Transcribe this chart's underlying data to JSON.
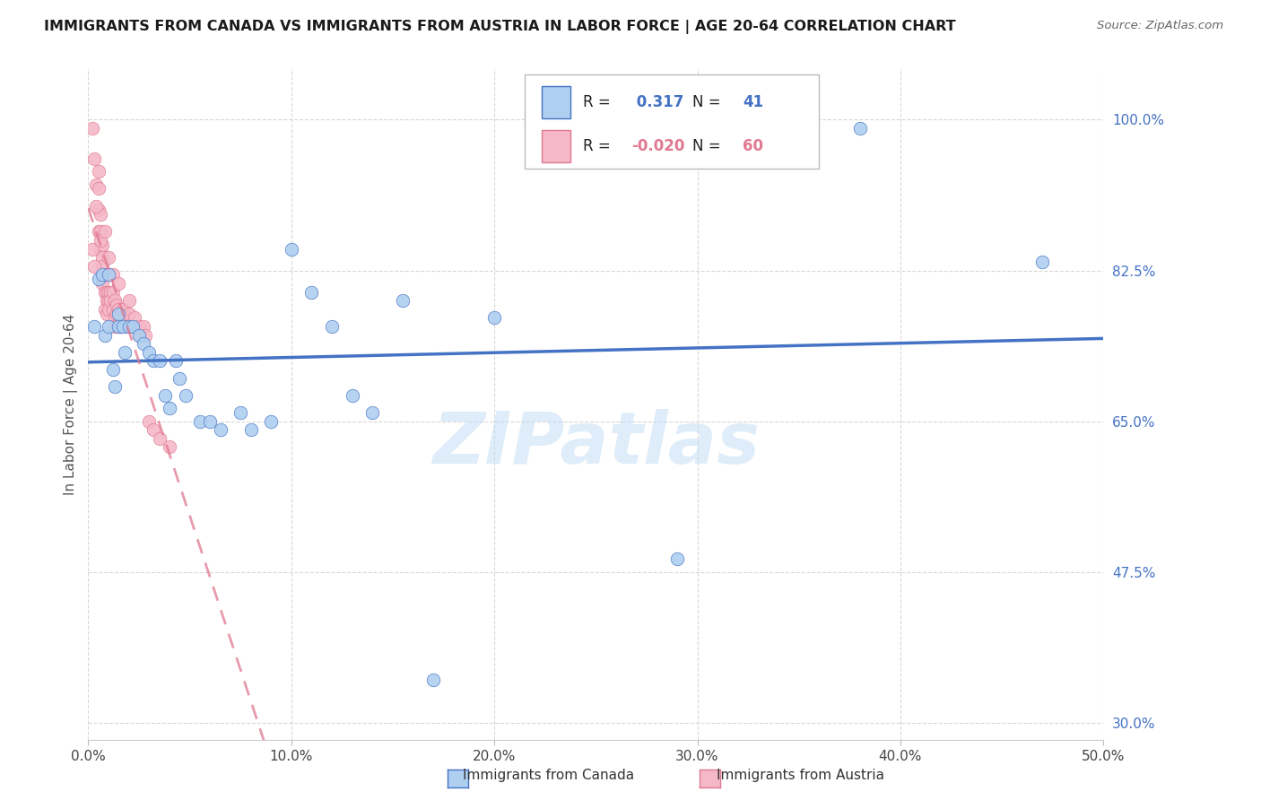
{
  "title": "IMMIGRANTS FROM CANADA VS IMMIGRANTS FROM AUSTRIA IN LABOR FORCE | AGE 20-64 CORRELATION CHART",
  "source": "Source: ZipAtlas.com",
  "ylabel": "In Labor Force | Age 20-64",
  "xlim": [
    0.0,
    0.5
  ],
  "ylim": [
    0.28,
    1.06
  ],
  "yticks": [
    0.3,
    0.475,
    0.65,
    0.825,
    1.0
  ],
  "ytick_labels": [
    "30.0%",
    "47.5%",
    "65.0%",
    "82.5%",
    "100.0%"
  ],
  "xticks": [
    0.0,
    0.1,
    0.2,
    0.3,
    0.4,
    0.5
  ],
  "xtick_labels": [
    "0.0%",
    "10.0%",
    "20.0%",
    "30.0%",
    "40.0%",
    "50.0%"
  ],
  "canada_R": 0.317,
  "canada_N": 41,
  "austria_R": -0.02,
  "austria_N": 60,
  "canada_color": "#aecff0",
  "canada_line_color": "#4472c4",
  "austria_color": "#f5b8c8",
  "austria_line_color": "#e07890",
  "background_color": "#ffffff",
  "grid_color": "#d8d8d8",
  "watermark": "ZIPatlas",
  "canada_x": [
    0.003,
    0.005,
    0.007,
    0.008,
    0.01,
    0.01,
    0.012,
    0.013,
    0.015,
    0.015,
    0.017,
    0.018,
    0.02,
    0.022,
    0.025,
    0.027,
    0.03,
    0.032,
    0.035,
    0.038,
    0.04,
    0.043,
    0.045,
    0.048,
    0.055,
    0.06,
    0.065,
    0.075,
    0.08,
    0.09,
    0.1,
    0.11,
    0.12,
    0.13,
    0.14,
    0.155,
    0.17,
    0.2,
    0.29,
    0.38,
    0.47
  ],
  "canada_y": [
    0.76,
    0.815,
    0.82,
    0.75,
    0.82,
    0.76,
    0.71,
    0.69,
    0.775,
    0.76,
    0.76,
    0.73,
    0.76,
    0.76,
    0.75,
    0.74,
    0.73,
    0.72,
    0.72,
    0.68,
    0.665,
    0.72,
    0.7,
    0.68,
    0.65,
    0.65,
    0.64,
    0.66,
    0.64,
    0.65,
    0.85,
    0.8,
    0.76,
    0.68,
    0.66,
    0.79,
    0.35,
    0.77,
    0.49,
    0.99,
    0.835
  ],
  "austria_x": [
    0.002,
    0.003,
    0.004,
    0.005,
    0.005,
    0.005,
    0.006,
    0.006,
    0.006,
    0.007,
    0.007,
    0.007,
    0.007,
    0.008,
    0.008,
    0.008,
    0.009,
    0.009,
    0.009,
    0.01,
    0.01,
    0.01,
    0.01,
    0.011,
    0.011,
    0.012,
    0.012,
    0.013,
    0.013,
    0.013,
    0.014,
    0.014,
    0.015,
    0.015,
    0.016,
    0.016,
    0.017,
    0.018,
    0.019,
    0.02,
    0.022,
    0.023,
    0.025,
    0.025,
    0.027,
    0.028,
    0.03,
    0.032,
    0.035,
    0.04,
    0.002,
    0.003,
    0.004,
    0.005,
    0.006,
    0.008,
    0.01,
    0.012,
    0.015,
    0.02
  ],
  "austria_y": [
    0.99,
    0.955,
    0.925,
    0.895,
    0.87,
    0.92,
    0.89,
    0.87,
    0.85,
    0.855,
    0.84,
    0.83,
    0.81,
    0.82,
    0.8,
    0.78,
    0.8,
    0.79,
    0.775,
    0.82,
    0.8,
    0.79,
    0.78,
    0.8,
    0.79,
    0.78,
    0.8,
    0.79,
    0.77,
    0.76,
    0.775,
    0.785,
    0.78,
    0.76,
    0.775,
    0.76,
    0.78,
    0.77,
    0.76,
    0.775,
    0.76,
    0.77,
    0.76,
    0.75,
    0.76,
    0.75,
    0.65,
    0.64,
    0.63,
    0.62,
    0.85,
    0.83,
    0.9,
    0.94,
    0.86,
    0.87,
    0.84,
    0.82,
    0.81,
    0.79
  ]
}
